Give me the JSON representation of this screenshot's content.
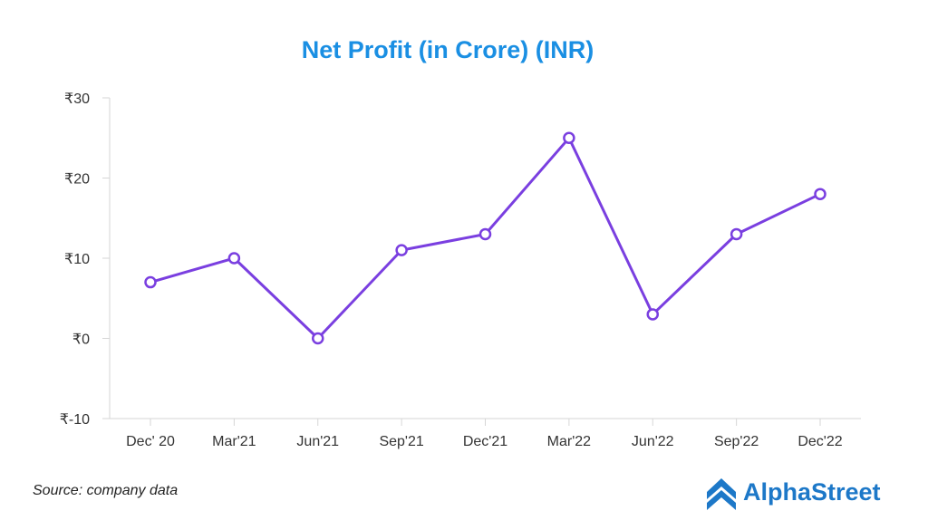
{
  "colors": {
    "title": "#1a8fe3",
    "line": "#7a3fe0",
    "point_fill": "#ffffff",
    "axis": "#d6d6d6",
    "brand": "#1d78c8"
  },
  "chart_data": {
    "type": "line",
    "title": "Net Profit (in Crore) (INR)",
    "categories": [
      "Dec' 20",
      "Mar'21",
      "Jun'21",
      "Sep'21",
      "Dec'21",
      "Mar'22",
      "Jun'22",
      "Sep'22",
      "Dec'22"
    ],
    "series": [
      {
        "values": [
          7,
          10,
          0,
          11,
          13,
          25,
          3,
          13,
          18
        ]
      }
    ],
    "ylim": [
      -10,
      30
    ],
    "yticks": [
      30,
      20,
      10,
      0,
      -10
    ],
    "ytick_labels": [
      "₹30",
      "₹20",
      "₹10",
      "₹0",
      "₹-10"
    ],
    "grid": false,
    "xlabel": "",
    "ylabel": ""
  },
  "footer": {
    "source": "Source: company data",
    "brand": "AlphaStreet",
    "brand_icon": "alphastreet-logo-icon"
  }
}
